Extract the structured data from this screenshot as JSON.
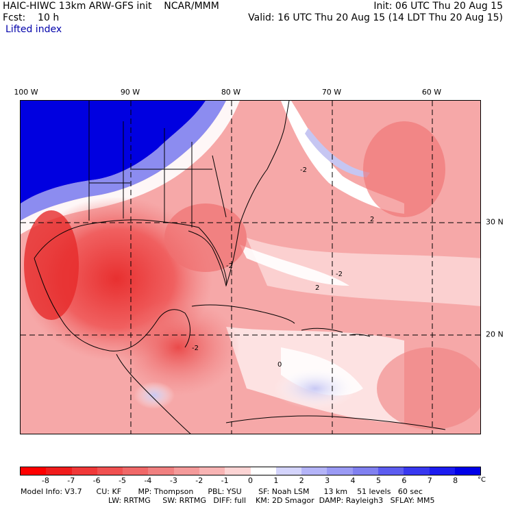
{
  "header": {
    "title": "HAIC-HIWC 13km ARW-GFS init    NCAR/MMM",
    "forecast": "Fcst:    10 h",
    "field": "Lifted index",
    "init": "Init: 06 UTC Thu 20 Aug 15",
    "valid": "Valid: 16 UTC Thu 20 Aug 15 (14 LDT Thu 20 Aug 15)"
  },
  "map": {
    "lon_labels": [
      "100 W",
      "90 W",
      "80 W",
      "70 W",
      "60 W"
    ],
    "lat_labels": [
      "30 N",
      "20 N"
    ],
    "contour_labels": [
      "-2",
      "-2",
      "-2",
      "2",
      "2",
      "-2",
      "0"
    ],
    "colors": {
      "warm_deep": "#e00000",
      "warm": "#f06060",
      "pink": "#f8b4b4",
      "neutral": "#ffffff",
      "cool": "#b4b4f0",
      "blue_deep": "#0000e0"
    }
  },
  "colorbar": {
    "labels": [
      "-8",
      "-7",
      "-6",
      "-5",
      "-4",
      "-3",
      "-2",
      "-1",
      "0",
      "1",
      "2",
      "3",
      "4",
      "5",
      "6",
      "7",
      "8"
    ],
    "unit": "°C",
    "colors": [
      "#ff0000",
      "#f01c1c",
      "#f03838",
      "#f05050",
      "#f06868",
      "#f08080",
      "#f49a9a",
      "#f8b4b4",
      "#fcd4d4",
      "#ffffff",
      "#d4d4fc",
      "#b4b4f8",
      "#9a9af4",
      "#8080f0",
      "#5c5cf0",
      "#3838f0",
      "#1c1cf0",
      "#0000e8"
    ]
  },
  "footer": {
    "line1": "Model Info: V3.7      CU: KF       MP: Thompson      PBL: YSU       SF: Noah LSM      13 km    51 levels   60 sec",
    "line2": "LW: RRTMG     SW: RRTMG   DIFF: full    KM: 2D Smagor  DAMP: Rayleigh3   SFLAY: MM5"
  }
}
